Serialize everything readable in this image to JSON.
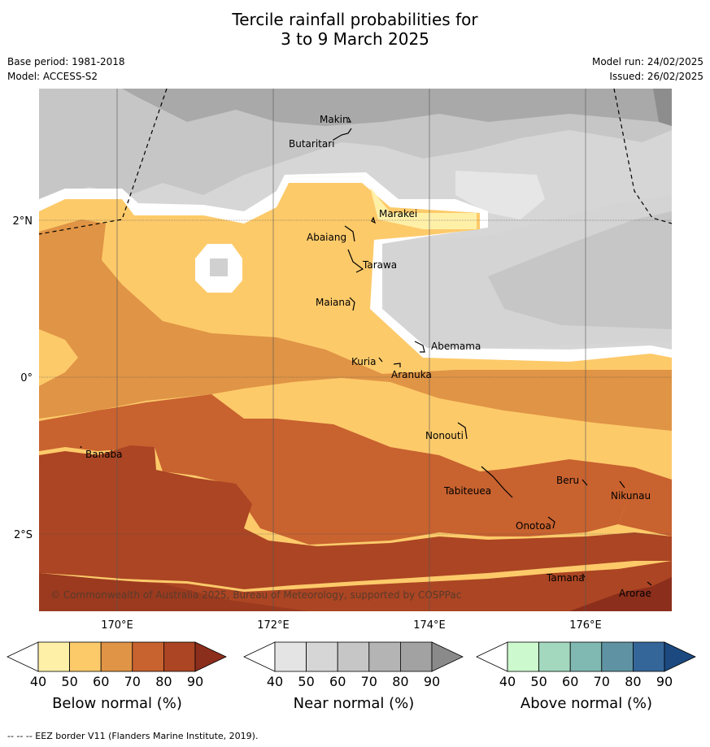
{
  "header": {
    "title_line1": "Tercile rainfall probabilities for",
    "title_line2": "3 to 9 March 2025",
    "base_period": "Base period: 1981-2018",
    "model": "Model: ACCESS-S2",
    "model_run": "Model run: 24/02/2025",
    "issued": "Issued: 26/02/2025"
  },
  "map": {
    "lat_labels": [
      "2°N",
      "0°",
      "2°S"
    ],
    "lon_labels": [
      "170°E",
      "172°E",
      "174°E",
      "176°E"
    ],
    "copyright": "© Commonwealth of Australia 2025, Bureau of Meteorology, supported by COSPPac",
    "places": [
      "Makin",
      "Butaritari",
      "Marakei",
      "Abaiang",
      "Tarawa",
      "Maiana",
      "Abemama",
      "Kuria",
      "Aranuka",
      "Nonouti",
      "Banaba",
      "Tabiteuea",
      "Beru",
      "Nikunau",
      "Onotoa",
      "Tamana",
      "Arorae"
    ]
  },
  "legend": {
    "ticks": [
      "40",
      "50",
      "60",
      "70",
      "80",
      "90"
    ],
    "below": {
      "label": "Below normal (%)",
      "colors": [
        "#fff0a8",
        "#fdca6a",
        "#e09445",
        "#c8622f",
        "#ab4523",
        "#8c2e1c"
      ]
    },
    "near": {
      "label": "Near normal (%)",
      "colors": [
        "#e4e4e4",
        "#d6d6d6",
        "#c6c6c6",
        "#b4b4b4",
        "#a2a2a2",
        "#8a8a8a"
      ]
    },
    "above": {
      "label": "Above normal (%)",
      "colors": [
        "#ccf9cd",
        "#a3d8be",
        "#80b8b2",
        "#5f93a3",
        "#356699",
        "#1c4a80"
      ]
    }
  },
  "footer": {
    "note": "-- -- -- EEZ border V11 (Flanders Marine Institute, 2019)."
  }
}
